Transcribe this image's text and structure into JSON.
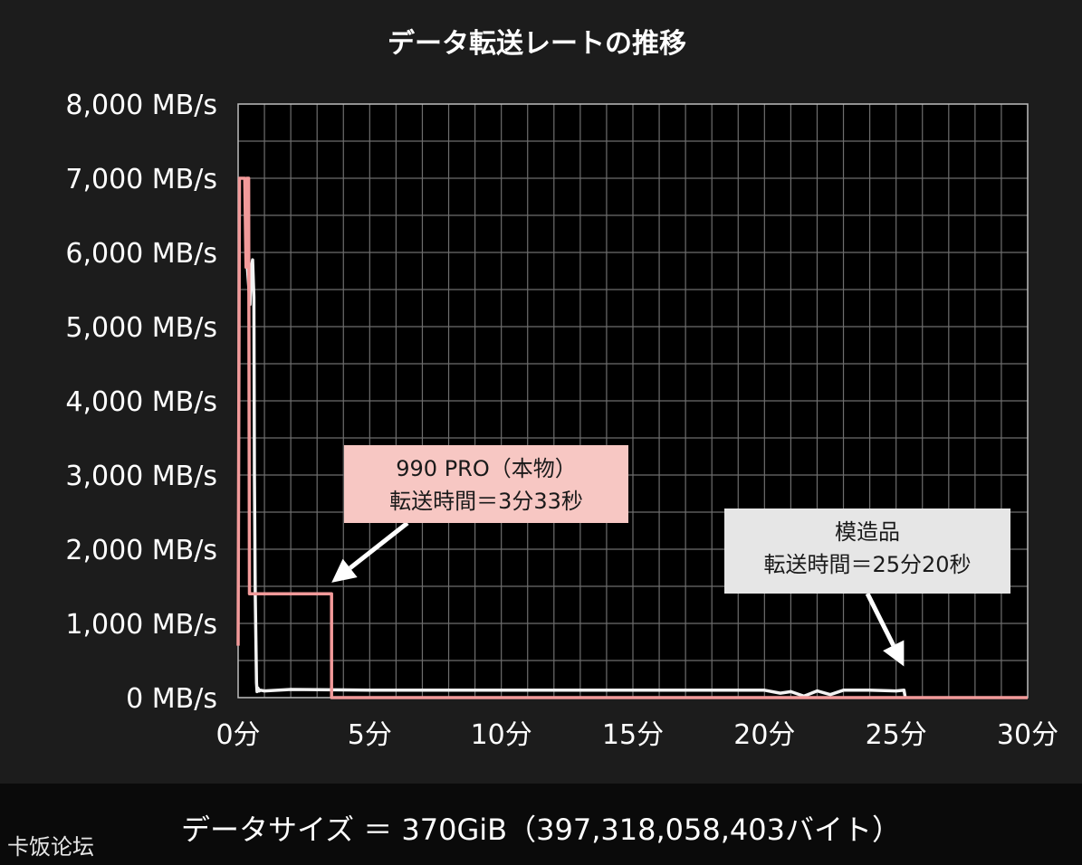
{
  "chart_data": {
    "type": "line",
    "title": "データ転送レートの推移",
    "y_unit": "MB/s",
    "x_unit": "分",
    "ylim": [
      0,
      8000
    ],
    "xlim": [
      0,
      30
    ],
    "y_ticks": [
      "0 MB/s",
      "1,000 MB/s",
      "2,000 MB/s",
      "3,000 MB/s",
      "4,000 MB/s",
      "5,000 MB/s",
      "6,000 MB/s",
      "7,000 MB/s",
      "8,000 MB/s"
    ],
    "x_ticks": [
      "0分",
      "5分",
      "10分",
      "15分",
      "20分",
      "25分",
      "30分"
    ],
    "grid": true,
    "series": [
      {
        "color": "#f29a9a",
        "x": [
          0,
          0.05,
          0.12,
          0.25,
          0.3,
          0.33,
          0.4,
          0.43,
          0.6,
          2.5,
          3.55,
          3.55,
          30
        ],
        "y": [
          700,
          7000,
          7000,
          7000,
          5800,
          7000,
          7000,
          1400,
          1400,
          1400,
          1400,
          0,
          0
        ]
      },
      {
        "color": "#f2f2f2",
        "x": [
          0.35,
          0.45,
          0.5,
          0.55,
          0.6,
          0.62,
          0.65,
          0.7,
          0.72,
          0.75,
          0.8,
          0.85,
          1,
          2,
          5,
          10,
          15,
          20,
          20.6,
          21,
          21.5,
          22,
          22.5,
          23,
          24,
          25,
          25.3,
          25.35
        ],
        "y": [
          5800,
          5300,
          5800,
          5900,
          5400,
          3000,
          1400,
          200,
          80,
          130,
          90,
          100,
          90,
          110,
          100,
          100,
          100,
          100,
          60,
          80,
          20,
          90,
          40,
          100,
          100,
          90,
          100,
          0
        ]
      }
    ],
    "annotations": [
      {
        "lines": [
          "990 PRO（本物）",
          "転送時間＝3分33秒"
        ],
        "background": "#f7c7c3",
        "target_x": 3.55,
        "target_y": 1550
      },
      {
        "lines": [
          "模造品",
          "転送時間＝25分20秒"
        ],
        "background": "#e6e6e6",
        "target_x": 25.3,
        "target_y": 420
      }
    ]
  },
  "footer": {
    "text": "データサイズ ＝ 370GiB（397,318,058,403バイト）"
  },
  "watermark": {
    "text": "卡饭论坛"
  }
}
